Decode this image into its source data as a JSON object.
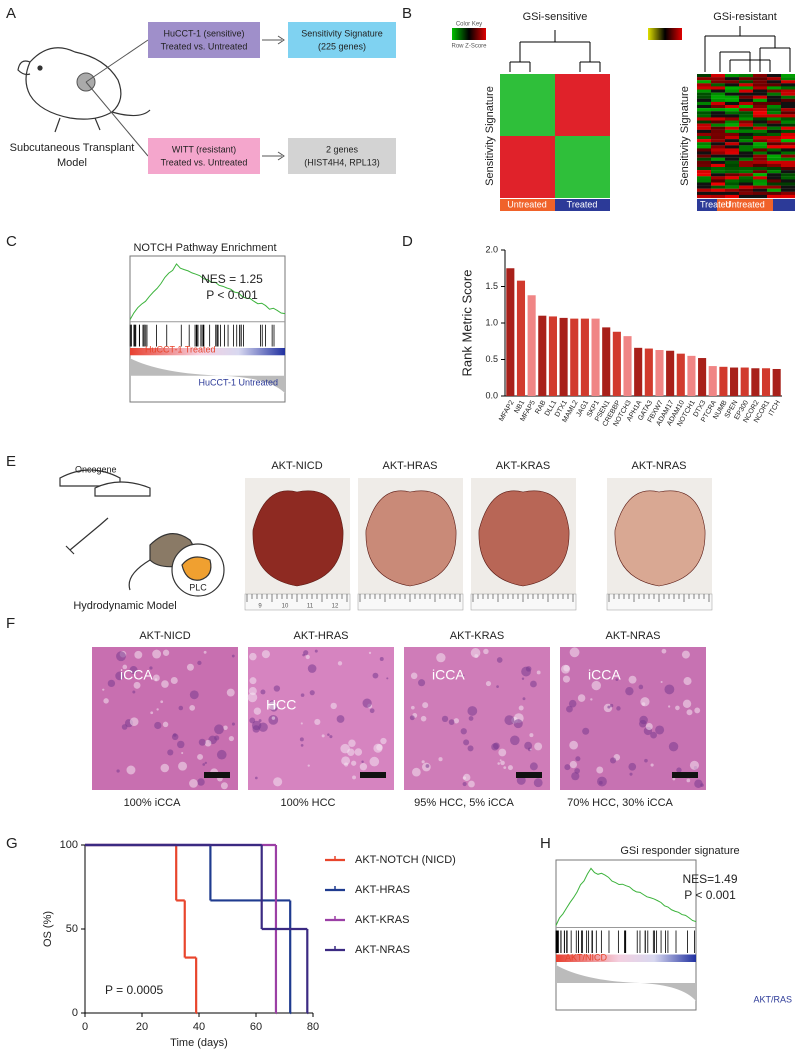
{
  "panel_labels": [
    "A",
    "B",
    "C",
    "D",
    "E",
    "F",
    "G",
    "H"
  ],
  "a": {
    "boxes": [
      {
        "lines": [
          "HuCCT-1 (sensitive)",
          "Treated vs. Untreated"
        ]
      },
      {
        "lines": [
          "Sensitivity Signature",
          "(225 genes)"
        ]
      },
      {
        "lines": [
          "WITT (resistant)",
          "Treated vs. Untreated"
        ]
      },
      {
        "lines": [
          "2 genes",
          "(HIST4H4, RPL13)"
        ]
      }
    ],
    "caption": [
      "Subcutaneous Transplant",
      "Model"
    ]
  },
  "b": {
    "color_key": "Color Key",
    "key_scale": "Row Z-Score",
    "heatmaps": [
      {
        "title": "GSi-sensitive",
        "row_label": "Sensitivity Signature",
        "groups": [
          "Untreated",
          "Treated"
        ]
      },
      {
        "title": "GSi-resistant",
        "row_label": "Sensitivity Signature",
        "groups": [
          "Treated",
          "Untreated"
        ]
      }
    ]
  },
  "c": {
    "title": "NOTCH Pathway Enrichment",
    "nes": "NES = 1.25",
    "p": "P < 0.001",
    "top": "HuCCT-1 Treated",
    "bottom": "HuCCT-1 Untreated"
  },
  "e": {
    "oncogene": "Oncogene",
    "plc": "PLC",
    "caption": "Hydrodynamic Model",
    "models": [
      "AKT-NICD",
      "AKT-HRAS",
      "AKT-KRAS",
      "AKT-NRAS"
    ],
    "ruler": [
      "9",
      "10",
      "11",
      "12"
    ]
  },
  "f": {
    "models": [
      "AKT-NICD",
      "AKT-HRAS",
      "AKT-KRAS",
      "AKT-NRAS"
    ],
    "region_labels": [
      "iCCA",
      "HCC",
      "iCCA",
      "iCCA"
    ],
    "captions": [
      "100% iCCA",
      "100% HCC",
      "95% HCC, 5% iCCA",
      "70% HCC, 30% iCCA"
    ]
  },
  "h": {
    "title": "GSi responder signature",
    "nes": "NES=1.49",
    "p": "P < 0.001",
    "top": "AKT/NICD",
    "bottom": "AKT/RAS"
  },
  "chart_data": [
    {
      "type": "bar",
      "ylabel": "Rank Metric Score",
      "categories": [
        "MFAP2",
        "NB1",
        "MFAP5",
        "RAB",
        "DLL1",
        "DTX1",
        "MAML2",
        "JAG1",
        "SKP1",
        "PSEN1",
        "CREBBP",
        "NOTCH3",
        "APH1A",
        "GATA3",
        "FBXW7",
        "ADAM17",
        "ADAM10",
        "NOTCH1",
        "DTX3",
        "PTCRA",
        "NUMB",
        "SPEN",
        "EP300",
        "NCOR2",
        "NCOR1",
        "ITCH"
      ],
      "values": [
        1.75,
        1.58,
        1.38,
        1.1,
        1.09,
        1.07,
        1.06,
        1.06,
        1.06,
        0.94,
        0.88,
        0.82,
        0.66,
        0.65,
        0.63,
        0.62,
        0.58,
        0.55,
        0.52,
        0.41,
        0.4,
        0.39,
        0.39,
        0.38,
        0.38,
        0.37
      ],
      "colors": [
        "#a8201a",
        "#d13a2d",
        "#f08585",
        "#a8201a",
        "#d13a2d",
        "#a8201a",
        "#d13a2d",
        "#d13a2d",
        "#f08585",
        "#a8201a",
        "#d13a2d",
        "#f08585",
        "#a8201a",
        "#d13a2d",
        "#f08585",
        "#a8201a",
        "#d13a2d",
        "#f08585",
        "#a8201a",
        "#f08585",
        "#d13a2d",
        "#a8201a",
        "#d13a2d",
        "#a8201a",
        "#d13a2d",
        "#a8201a"
      ],
      "ylim": [
        0,
        2
      ],
      "yticks": [
        {
          "value": 0,
          "label": "0.0"
        },
        {
          "value": 0.5,
          "label": "0.5"
        },
        {
          "value": 1,
          "label": "1.0"
        },
        {
          "value": 1.5,
          "label": "1.5"
        },
        {
          "value": 2,
          "label": "2.0"
        }
      ]
    },
    {
      "type": "step",
      "ylabel": "OS (%)",
      "xlabel": "Time (days)",
      "annotation": "P = 0.0005",
      "xlim": [
        0,
        80
      ],
      "xticks": [
        0,
        20,
        40,
        60,
        80
      ],
      "ylim": [
        0,
        100
      ],
      "yticks": [
        0,
        50,
        100
      ],
      "series": [
        {
          "name": "AKT-NOTCH (NICD)",
          "color": "#e8452c",
          "x": [
            0,
            32,
            35,
            39
          ],
          "values": [
            100,
            67,
            33,
            0
          ]
        },
        {
          "name": "AKT-HRAS",
          "color": "#1f3b8f",
          "x": [
            0,
            44,
            72
          ],
          "values": [
            100,
            67,
            0
          ]
        },
        {
          "name": "AKT-KRAS",
          "color": "#9b3fa5",
          "x": [
            0,
            67
          ],
          "values": [
            100,
            0
          ]
        },
        {
          "name": "AKT-NRAS",
          "color": "#3b2a82",
          "x": [
            0,
            62,
            78
          ],
          "values": [
            100,
            50,
            0
          ]
        }
      ]
    }
  ]
}
